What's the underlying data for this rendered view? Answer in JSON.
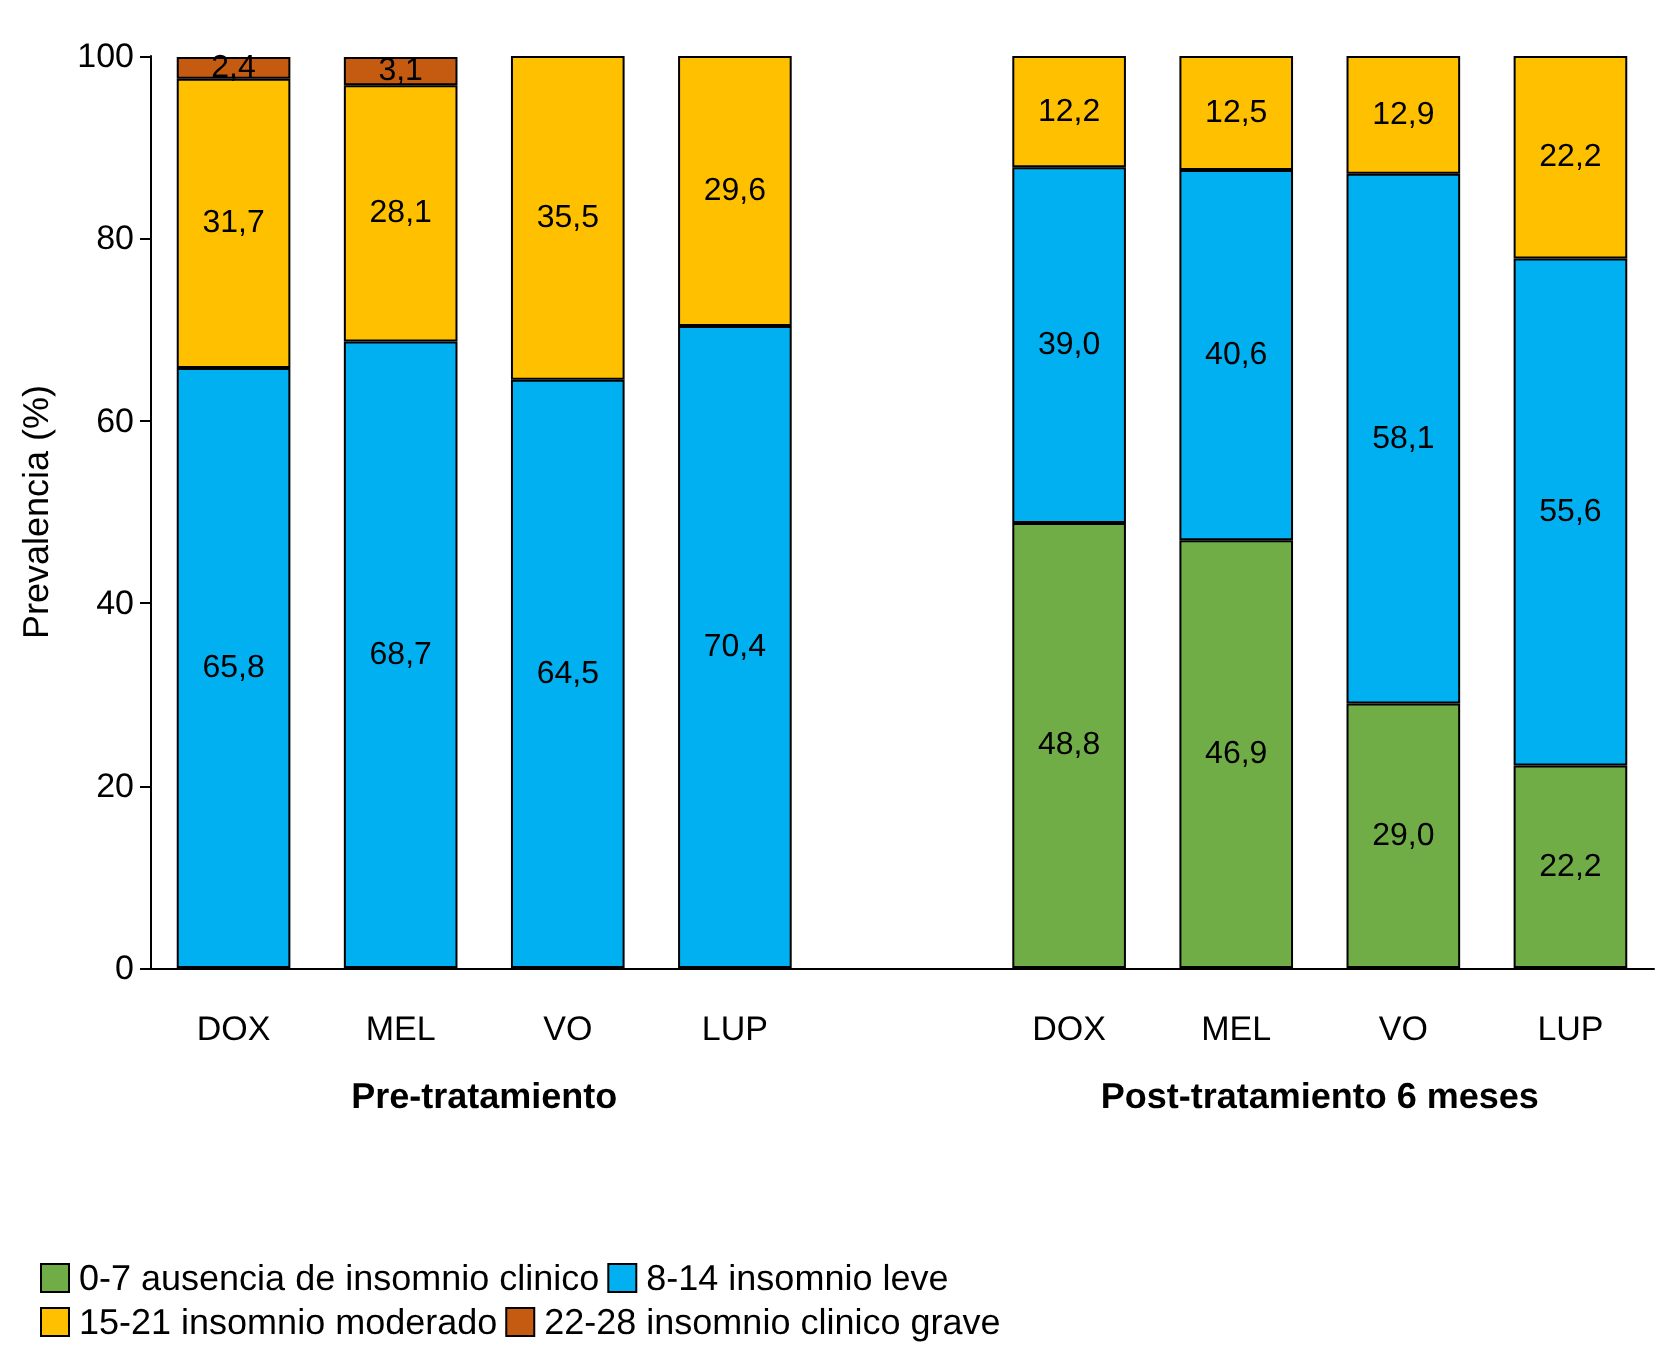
{
  "chart_data": {
    "type": "bar",
    "stacked": true,
    "ylabel": "Prevalencia (%)",
    "categories": [
      "DOX",
      "MEL",
      "VO",
      "LUP",
      null,
      "DOX",
      "MEL",
      "VO",
      "LUP"
    ],
    "series": [
      {
        "name": "0-7 ausencia de insomnio clinico",
        "color": "#70ad47",
        "values": [
          null,
          null,
          null,
          null,
          null,
          48.8,
          46.9,
          29.0,
          22.2
        ],
        "value_labels": [
          null,
          null,
          null,
          null,
          null,
          "48,8",
          "46,9",
          "29,0",
          "22,2"
        ]
      },
      {
        "name": "8-14 insomnio leve",
        "color": "#00b0f0",
        "values": [
          65.8,
          68.7,
          64.5,
          70.4,
          null,
          39.0,
          40.6,
          58.1,
          55.6
        ],
        "value_labels": [
          "65,8",
          "68,7",
          "64,5",
          "70,4",
          null,
          "39,0",
          "40,6",
          "58,1",
          "55,6"
        ]
      },
      {
        "name": "15-21 insomnio moderado",
        "color": "#ffc000",
        "values": [
          31.7,
          28.1,
          35.5,
          29.6,
          null,
          12.2,
          12.5,
          12.9,
          22.2
        ],
        "value_labels": [
          "31,7",
          "28,1",
          "35,5",
          "29,6",
          null,
          "12,2",
          "12,5",
          "12,9",
          "22,2"
        ]
      },
      {
        "name": "22-28 insomnio clinico grave",
        "color": "#c55a11",
        "values": [
          2.4,
          3.1,
          null,
          null,
          null,
          null,
          null,
          null,
          null
        ],
        "value_labels": [
          "2,4",
          "3,1",
          null,
          null,
          null,
          null,
          null,
          null,
          null
        ]
      }
    ],
    "ylim": [
      0,
      100
    ],
    "yticks": [
      0,
      20,
      40,
      60,
      80,
      100
    ],
    "grid": false,
    "legend": "bottom",
    "annotations": [
      "Pre-tratamiento",
      "Post-tratamiento 6 meses"
    ]
  }
}
